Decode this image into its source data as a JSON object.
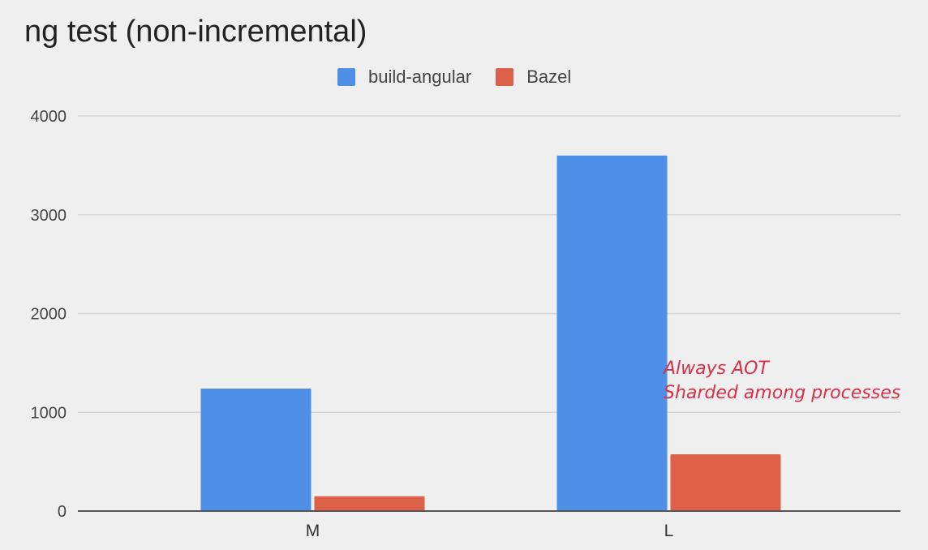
{
  "chart_data": {
    "type": "bar",
    "title": "ng test (non-incremental)",
    "categories": [
      "M",
      "L"
    ],
    "series": [
      {
        "name": "build-angular",
        "color": "#4e8fe8",
        "values": [
          1240,
          3600
        ]
      },
      {
        "name": "Bazel",
        "color": "#dd6148",
        "values": [
          150,
          575
        ]
      }
    ],
    "ylim": [
      0,
      4000
    ],
    "yticks": [
      "0",
      "1000",
      "2000",
      "3000",
      "4000"
    ],
    "grid": true,
    "legend_position": "top-center",
    "annotation": {
      "lines": [
        "Always AOT",
        "Sharded among processes"
      ],
      "color": "#d9304a"
    }
  }
}
